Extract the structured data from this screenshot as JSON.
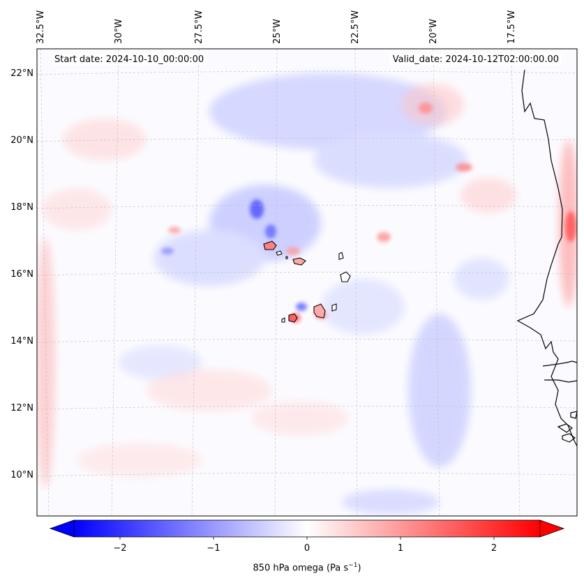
{
  "map": {
    "start_date_label": "Start date: 2024-10-10_00:00:00",
    "valid_date_label": "Valid_date: 2024-10-12T02:00:00.00",
    "longitude_labels": [
      "32.5°W",
      "30°W",
      "27.5°W",
      "25°W",
      "22.5°W",
      "20°W",
      "17.5°W"
    ],
    "latitude_labels": [
      "22°N",
      "20°N",
      "18°N",
      "16°N",
      "14°N",
      "12°N",
      "10°N"
    ],
    "colors": {
      "negative": "#0000ff",
      "zero": "#ffffff",
      "positive": "#ff0000",
      "coastline": "#000000",
      "gridline": "#bbbbbb"
    }
  },
  "colorbar": {
    "ticks": [
      "−2",
      "−1",
      "0",
      "1",
      "2"
    ],
    "label_main": "850 hPa omega (Pa s",
    "label_exp": "−1",
    "label_close": ")"
  }
}
